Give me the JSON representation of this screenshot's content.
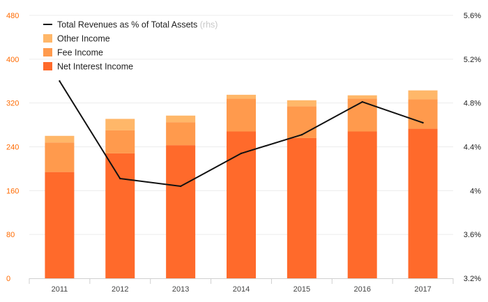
{
  "chart_data": {
    "type": "bar",
    "stacked": true,
    "categories": [
      "2011",
      "2012",
      "2013",
      "2014",
      "2015",
      "2016",
      "2017"
    ],
    "series": [
      {
        "name": "Net Interest Income",
        "values": [
          194,
          228,
          243,
          268,
          256,
          268,
          273
        ],
        "color": "#ff6a2b"
      },
      {
        "name": "Fee Income",
        "values": [
          54,
          42,
          42,
          60,
          58,
          60,
          54
        ],
        "color": "#ff9a4d"
      },
      {
        "name": "Other Income",
        "values": [
          12,
          21,
          12,
          7,
          11,
          6,
          16
        ],
        "color": "#ffb769"
      }
    ],
    "line_series": {
      "name": "Total Revenues as % of Total Assets",
      "note": "(rhs)",
      "axis": "right",
      "values": [
        5.0,
        4.11,
        4.04,
        4.34,
        4.51,
        4.81,
        4.62
      ],
      "color": "#111111"
    },
    "y_left": {
      "ticks": [
        "0",
        "80",
        "160",
        "240",
        "320",
        "400",
        "480"
      ],
      "ylim": [
        0,
        480
      ],
      "color": "#ff6a00"
    },
    "y_right": {
      "ticks": [
        "3.2%",
        "3.6%",
        "4%",
        "4.4%",
        "4.8%",
        "5.2%",
        "5.6%"
      ],
      "ylim": [
        3.2,
        5.6
      ]
    },
    "grid": true,
    "legend_position": "top-left",
    "title": "",
    "xlabel": "",
    "ylabel": ""
  }
}
